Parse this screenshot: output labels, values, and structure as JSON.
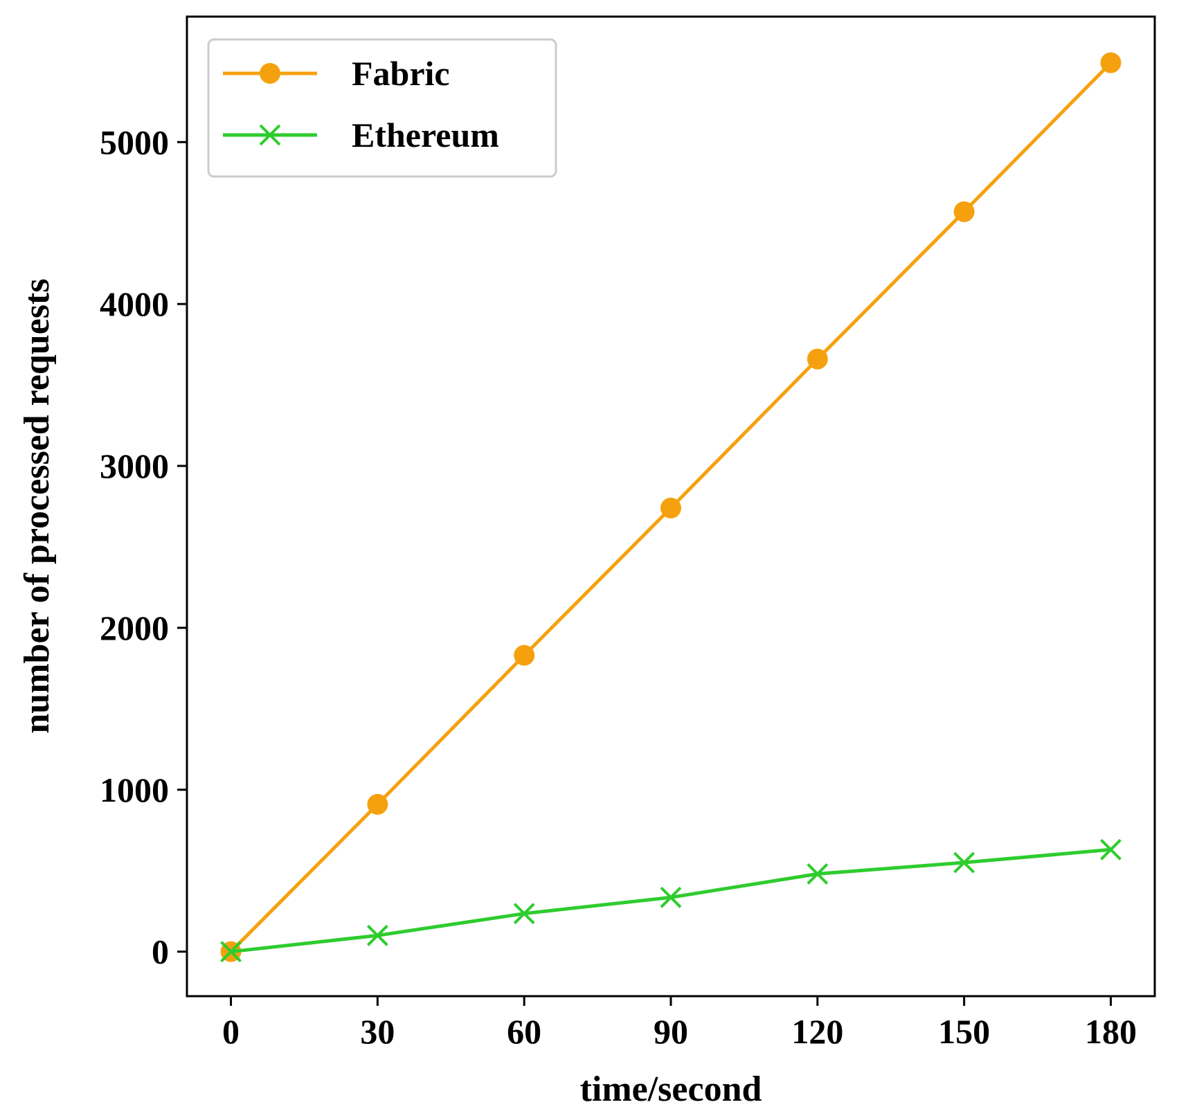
{
  "chart_data": {
    "type": "line",
    "x": [
      0,
      30,
      60,
      90,
      120,
      150,
      180
    ],
    "xticks": [
      0,
      30,
      60,
      90,
      120,
      150,
      180
    ],
    "yticks": [
      0,
      1000,
      2000,
      3000,
      4000,
      5000
    ],
    "xlim": [
      -9,
      189
    ],
    "ylim": [
      -275,
      5775
    ],
    "xlabel": "time/second",
    "ylabel": "number of processed requests",
    "grid": false,
    "legend_position": "top-left",
    "series": [
      {
        "name": "Fabric",
        "marker": "circle",
        "color": "#f5a10f",
        "values": [
          0,
          910,
          1830,
          2740,
          3660,
          4570,
          5490
        ]
      },
      {
        "name": "Ethereum",
        "marker": "x",
        "color": "#2ecc2e",
        "values": [
          0,
          100,
          235,
          335,
          480,
          550,
          630
        ]
      }
    ]
  }
}
